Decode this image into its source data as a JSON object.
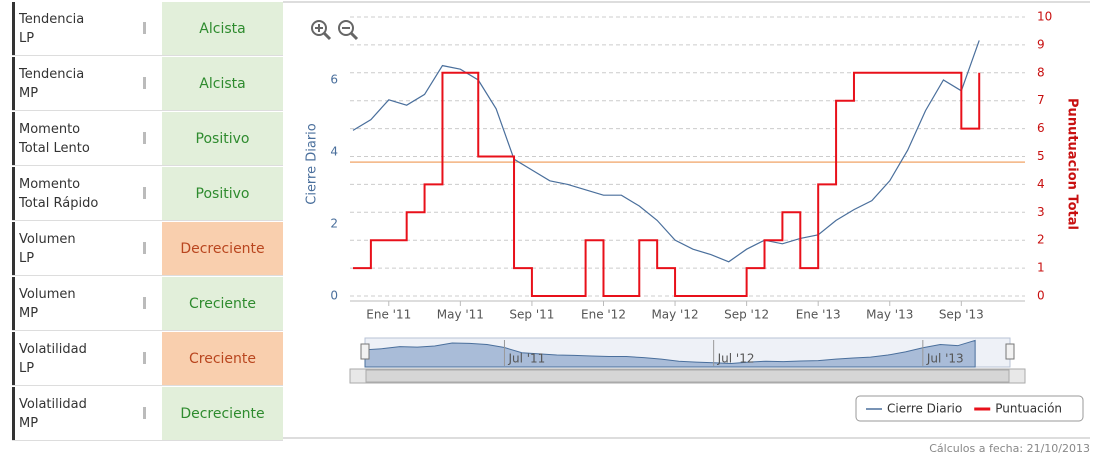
{
  "table": {
    "rows": [
      {
        "label": [
          "Tendencia",
          "LP"
        ],
        "value": "Alcista",
        "background": "#e2efda",
        "color": "#2e8b2e"
      },
      {
        "label": [
          "Tendencia",
          "MP"
        ],
        "value": "Alcista",
        "background": "#e2efda",
        "color": "#2e8b2e"
      },
      {
        "label": [
          "Momento",
          "Total Lento"
        ],
        "value": "Positivo",
        "background": "#e2efda",
        "color": "#2e8b2e"
      },
      {
        "label": [
          "Momento",
          "Total Rápido"
        ],
        "value": "Positivo",
        "background": "#e2efda",
        "color": "#2e8b2e"
      },
      {
        "label": [
          "Volumen",
          "LP"
        ],
        "value": "Decreciente",
        "background": "#f9cfae",
        "color": "#b9461f"
      },
      {
        "label": [
          "Volumen",
          "MP"
        ],
        "value": "Creciente",
        "background": "#e2efda",
        "color": "#2e8b2e"
      },
      {
        "label": [
          "Volatilidad",
          "LP"
        ],
        "value": "Creciente",
        "background": "#f9cfae",
        "color": "#b9461f"
      },
      {
        "label": [
          "Volatilidad",
          "MP"
        ],
        "value": "Decreciente",
        "background": "#e2efda",
        "color": "#2e8b2e"
      }
    ]
  },
  "chart_data": {
    "type": "line",
    "y_label": "Cierre Diario",
    "y2_label": "Punutuacion Total",
    "x": [
      "2010-11",
      "2010-12",
      "2011-01",
      "2011-02",
      "2011-03",
      "2011-04",
      "2011-05",
      "2011-06",
      "2011-07",
      "2011-08",
      "2011-09",
      "2011-10",
      "2011-11",
      "2011-12",
      "2012-01",
      "2012-02",
      "2012-03",
      "2012-04",
      "2012-05",
      "2012-06",
      "2012-07",
      "2012-08",
      "2012-09",
      "2012-10",
      "2012-11",
      "2012-12",
      "2013-01",
      "2013-02",
      "2013-03",
      "2013-04",
      "2013-05",
      "2013-06",
      "2013-07",
      "2013-08",
      "2013-09",
      "2013-10"
    ],
    "xlim": [
      "2010-11",
      "2013-12"
    ],
    "xticks": [
      {
        "value": "2011-01",
        "label": "Ene '11"
      },
      {
        "value": "2011-05",
        "label": "May '11"
      },
      {
        "value": "2011-09",
        "label": "Sep '11"
      },
      {
        "value": "2012-01",
        "label": "Ene '12"
      },
      {
        "value": "2012-05",
        "label": "May '12"
      },
      {
        "value": "2012-09",
        "label": "Sep '12"
      },
      {
        "value": "2013-01",
        "label": "Ene '13"
      },
      {
        "value": "2013-05",
        "label": "May '13"
      },
      {
        "value": "2013-09",
        "label": "Sep '13"
      }
    ],
    "ylim": [
      0,
      7.75
    ],
    "yticks": [
      0,
      2,
      4,
      6
    ],
    "y2lim": [
      0,
      10
    ],
    "y2ticks": [
      0,
      1,
      2,
      3,
      4,
      5,
      6,
      7,
      8,
      9,
      10
    ],
    "grid": true,
    "series": [
      {
        "name": "Cierre Diario",
        "color": "#4a6f9c",
        "values": [
          4.6,
          4.9,
          5.45,
          5.3,
          5.6,
          6.4,
          6.3,
          6.0,
          5.2,
          3.8,
          3.5,
          3.2,
          3.1,
          2.95,
          2.8,
          2.8,
          2.5,
          2.1,
          1.55,
          1.3,
          1.15,
          0.95,
          1.3,
          1.55,
          1.45,
          1.6,
          1.7,
          2.1,
          2.4,
          2.65,
          3.2,
          4.05,
          5.15,
          6.0,
          5.7,
          7.1
        ]
      },
      {
        "name": "Puntuación",
        "color": "#e8101a",
        "axis": "y2",
        "step": true,
        "values": [
          1,
          2,
          2,
          3,
          4,
          8,
          8,
          5,
          5,
          1,
          0,
          0,
          0,
          2,
          0,
          0,
          2,
          1,
          0,
          0,
          0,
          0,
          1,
          2,
          3,
          1,
          4,
          7,
          8,
          8,
          8,
          8,
          8,
          8,
          6,
          8
        ]
      }
    ],
    "reference_line": {
      "axis": "y2",
      "value": 4.8,
      "color": "#f3b27f"
    },
    "legend": "bottom-right",
    "navigator_labels": [
      {
        "value": "2011-07",
        "label": "Jul '11"
      },
      {
        "value": "2012-07",
        "label": "Jul '12"
      },
      {
        "value": "2013-07",
        "label": "Jul '13"
      }
    ]
  },
  "footer": "Cálculos a fecha: 21/10/2013"
}
